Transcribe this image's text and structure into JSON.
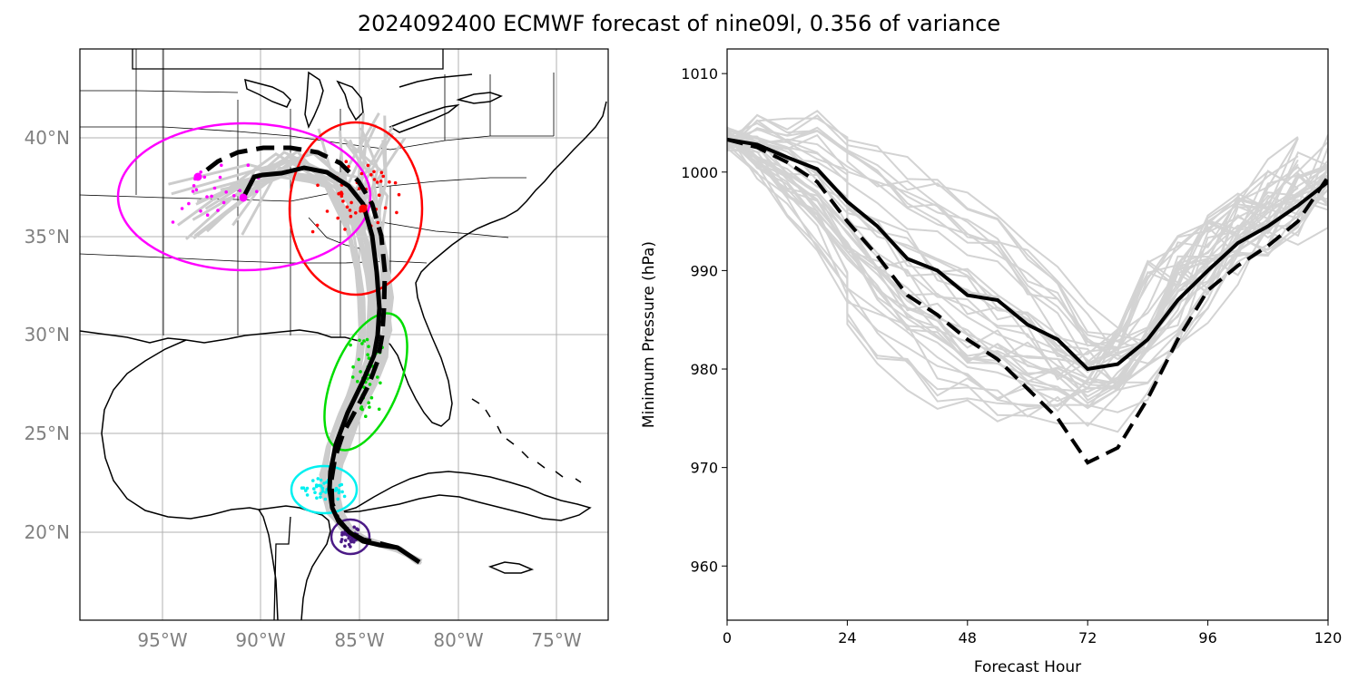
{
  "title": "2024092400 ECMWF forecast of nine09l, 0.356 of variance",
  "map": {
    "lat_ticks": [
      "40°N",
      "35°N",
      "30°N",
      "25°N",
      "20°N"
    ],
    "lon_ticks": [
      "95°W",
      "90°W",
      "85°W",
      "80°W",
      "75°W"
    ],
    "colors": {
      "ensemble": "#cccccc",
      "mean": "#000000",
      "hour_24": "#4b1a86",
      "hour_48": "#00f0f0",
      "hour_72": "#00dd00",
      "hour_96": "#ff0000",
      "hour_120": "#ff00ff"
    }
  },
  "chart_data": {
    "type": "line",
    "xlabel": "Forecast Hour",
    "ylabel": "Minimum Pressure (hPa)",
    "xlim": [
      0,
      120
    ],
    "ylim": [
      954.5,
      1012.5
    ],
    "xticks": [
      0,
      24,
      48,
      72,
      96,
      120
    ],
    "yticks": [
      960,
      970,
      980,
      990,
      1000,
      1010
    ],
    "grid": false,
    "series": [
      {
        "style": "solid",
        "x": [
          0,
          6,
          12,
          18,
          24,
          30,
          36,
          42,
          48,
          54,
          60,
          66,
          72,
          78,
          84,
          90,
          96,
          102,
          108,
          114,
          120
        ],
        "values": [
          1003.3,
          1002.8,
          1001.5,
          1000.3,
          997.0,
          994.5,
          991.2,
          990.0,
          987.5,
          987.0,
          984.5,
          983.0,
          980.0,
          980.5,
          983.0,
          987.0,
          990.0,
          992.8,
          994.5,
          996.6,
          999.0
        ]
      },
      {
        "style": "dashed",
        "x": [
          0,
          6,
          12,
          18,
          24,
          30,
          36,
          42,
          48,
          54,
          60,
          66,
          72,
          78,
          84,
          90,
          96,
          102,
          108,
          114,
          120
        ],
        "values": [
          1003.3,
          1002.5,
          1001.0,
          999.0,
          995.0,
          991.5,
          987.5,
          985.5,
          983.0,
          981.0,
          978.0,
          975.0,
          970.5,
          972.0,
          977.0,
          983.0,
          988.0,
          990.5,
          992.5,
          995.0,
          999.5
        ]
      }
    ]
  }
}
